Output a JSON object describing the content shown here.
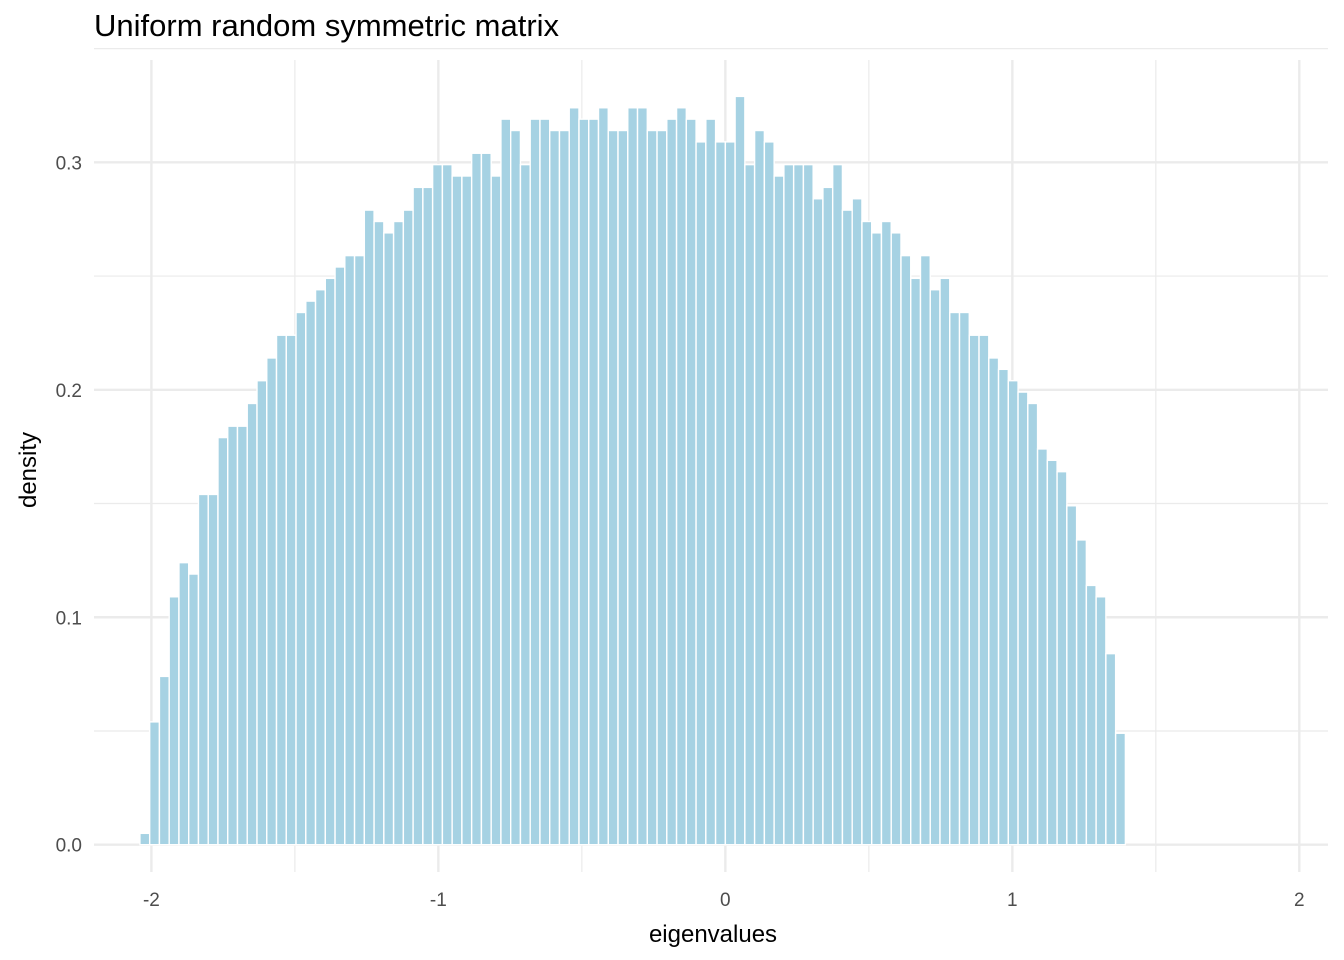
{
  "chart_data": {
    "type": "bar",
    "title": "Uniform random symmetric matrix",
    "xlabel": "eigenvalues",
    "ylabel": "density",
    "xlim": [
      -2.2,
      2.1
    ],
    "ylim": [
      -0.012,
      0.345
    ],
    "x_ticks": [
      -2,
      -1,
      0,
      1,
      2
    ],
    "x_tick_labels": [
      "-2",
      "-1",
      "0",
      "1",
      "2"
    ],
    "y_ticks": [
      0.0,
      0.1,
      0.2,
      0.3
    ],
    "y_tick_labels": [
      "0.0",
      "0.1",
      "0.2",
      "0.3"
    ],
    "grid": true,
    "bar_color": "#A6D2E3",
    "bin_start": -2.04,
    "bin_width": 0.034,
    "values": [
      0.005,
      0.054,
      0.074,
      0.109,
      0.124,
      0.119,
      0.154,
      0.154,
      0.179,
      0.184,
      0.184,
      0.194,
      0.204,
      0.214,
      0.224,
      0.224,
      0.234,
      0.239,
      0.244,
      0.249,
      0.254,
      0.259,
      0.259,
      0.279,
      0.274,
      0.269,
      0.274,
      0.279,
      0.289,
      0.289,
      0.299,
      0.299,
      0.294,
      0.294,
      0.304,
      0.304,
      0.294,
      0.319,
      0.314,
      0.299,
      0.319,
      0.319,
      0.314,
      0.314,
      0.324,
      0.319,
      0.319,
      0.324,
      0.314,
      0.314,
      0.324,
      0.324,
      0.314,
      0.314,
      0.319,
      0.324,
      0.319,
      0.309,
      0.319,
      0.309,
      0.309,
      0.329,
      0.299,
      0.314,
      0.309,
      0.294,
      0.299,
      0.299,
      0.299,
      0.284,
      0.289,
      0.299,
      0.279,
      0.284,
      0.274,
      0.269,
      0.274,
      0.269,
      0.259,
      0.249,
      0.259,
      0.244,
      0.249,
      0.234,
      0.234,
      0.224,
      0.224,
      0.214,
      0.209,
      0.204,
      0.199,
      0.194,
      0.174,
      0.169,
      0.164,
      0.149,
      0.134,
      0.114,
      0.109,
      0.084,
      0.049
    ]
  }
}
